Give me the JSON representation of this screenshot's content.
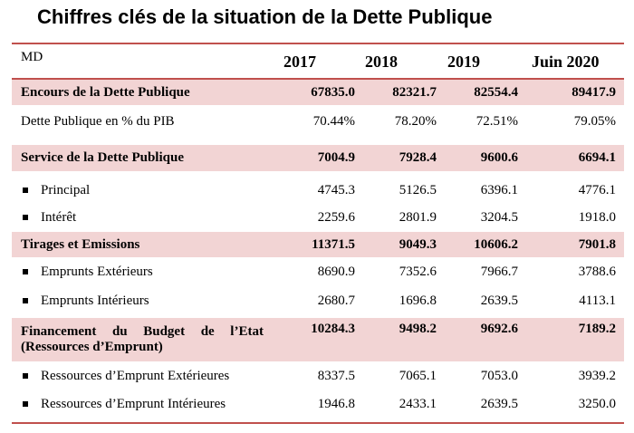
{
  "title": "Chiffres clés de la situation de la Dette Publique",
  "accent_color": "#c0504d",
  "highlight_color": "#f2d4d4",
  "table": {
    "unit": "MD",
    "columns": [
      "2017",
      "2018",
      "2019",
      "Juin 2020"
    ],
    "rows": [
      {
        "label": "Encours de la Dette Publique",
        "values": [
          "67835.0",
          "82321.7",
          "82554.4",
          "89417.9"
        ],
        "bold": true
      },
      {
        "label": "Dette Publique en % du PIB",
        "values": [
          "70.44%",
          "78.20%",
          "72.51%",
          "79.05%"
        ],
        "bold": false
      },
      {
        "label": "Service de la Dette Publique",
        "values": [
          "7004.9",
          "7928.4",
          "9600.6",
          "6694.1"
        ],
        "bold": true
      },
      {
        "label": "Principal",
        "values": [
          "4745.3",
          "5126.5",
          "6396.1",
          "4776.1"
        ],
        "bullet": true
      },
      {
        "label": "Intérêt",
        "values": [
          "2259.6",
          "2801.9",
          "3204.5",
          "1918.0"
        ],
        "bullet": true
      },
      {
        "label": "Tirages et Emissions",
        "values": [
          "11371.5",
          "9049.3",
          "10606.2",
          "7901.8"
        ],
        "bold": true
      },
      {
        "label": "Emprunts Extérieurs",
        "values": [
          "8690.9",
          "7352.6",
          "7966.7",
          "3788.6"
        ],
        "bullet": true
      },
      {
        "label": "Emprunts Intérieurs",
        "values": [
          "2680.7",
          "1696.8",
          "2639.5",
          "4113.1"
        ],
        "bullet": true
      },
      {
        "label": "Financement du Budget de l’Etat (Ressources d’Emprunt)",
        "label_line1_words": [
          "Financement",
          "du",
          "Budget",
          "de",
          "l’Etat"
        ],
        "label_line2": "(Ressources d’Emprunt)",
        "values": [
          "10284.3",
          "9498.2",
          "9692.6",
          "7189.2"
        ],
        "bold": true
      },
      {
        "label": "Ressources d’Emprunt Extérieures",
        "values": [
          "8337.5",
          "7065.1",
          "7053.0",
          "3939.2"
        ],
        "bullet": true
      },
      {
        "label": "Ressources d’Emprunt Intérieures",
        "values": [
          "1946.8",
          "2433.1",
          "2639.5",
          "3250.0"
        ],
        "bullet": true
      }
    ]
  }
}
